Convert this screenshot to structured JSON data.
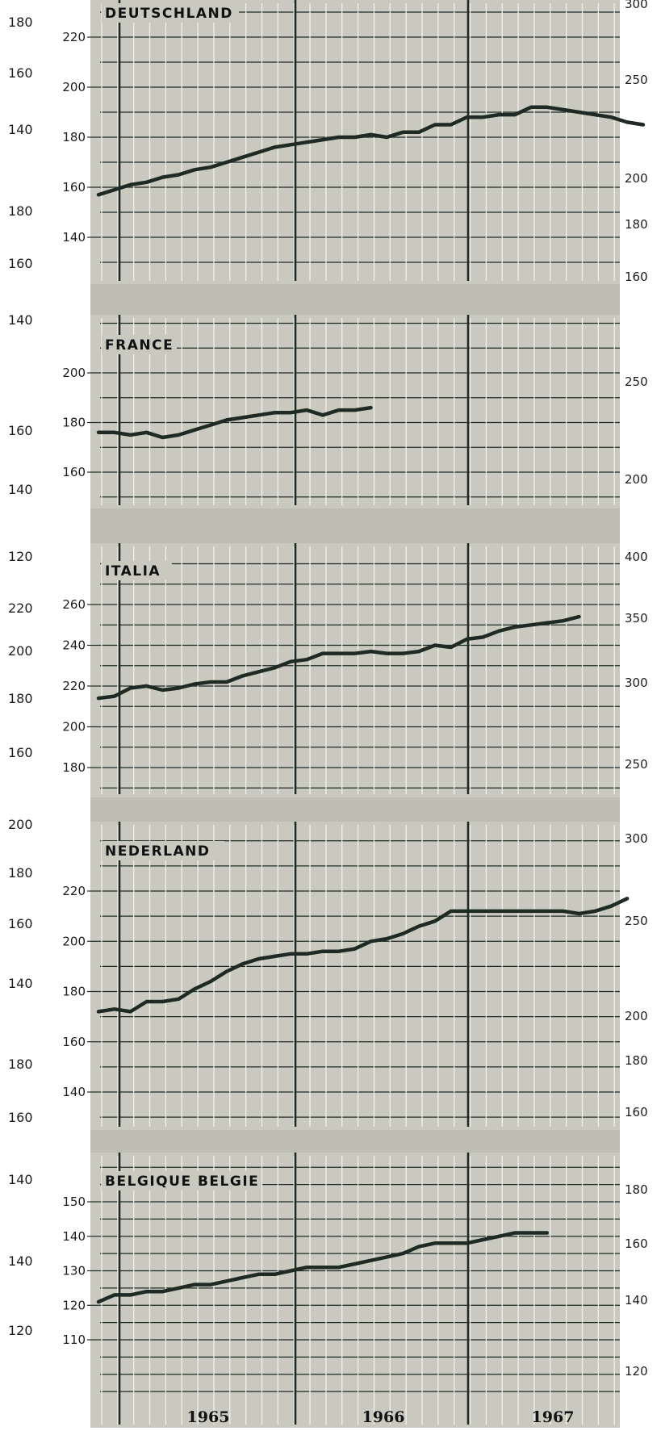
{
  "chart_data": {
    "type": "line",
    "x_labels": [
      "1965",
      "1966",
      "1967"
    ],
    "grid": true,
    "outer_left_ticks": [
      "180",
      "160",
      "140",
      "180",
      "160",
      "140",
      "160",
      "140",
      "120",
      "220",
      "200",
      "180",
      "160",
      "200",
      "180",
      "160",
      "140",
      "180",
      "160",
      "140",
      "140",
      "120"
    ],
    "panels": [
      {
        "title": "DEUTSCHLAND",
        "left_ticks": [
          140,
          160,
          180,
          200,
          220
        ],
        "right_ticks": [
          160,
          180,
          200,
          250,
          300
        ],
        "series": [
          {
            "x": 0,
            "y": 157
          },
          {
            "x": 0.5,
            "y": 159
          },
          {
            "x": 1,
            "y": 161
          },
          {
            "x": 1.5,
            "y": 162
          },
          {
            "x": 2,
            "y": 164
          },
          {
            "x": 2.5,
            "y": 165
          },
          {
            "x": 3,
            "y": 167
          },
          {
            "x": 3.5,
            "y": 168
          },
          {
            "x": 4,
            "y": 170
          },
          {
            "x": 4.5,
            "y": 172
          },
          {
            "x": 5,
            "y": 174
          },
          {
            "x": 5.5,
            "y": 176
          },
          {
            "x": 6,
            "y": 177
          },
          {
            "x": 6.5,
            "y": 178
          },
          {
            "x": 7,
            "y": 179
          },
          {
            "x": 7.5,
            "y": 180
          },
          {
            "x": 8,
            "y": 180
          },
          {
            "x": 8.5,
            "y": 181
          },
          {
            "x": 9,
            "y": 180
          },
          {
            "x": 9.5,
            "y": 182
          },
          {
            "x": 10,
            "y": 182
          },
          {
            "x": 10.5,
            "y": 185
          },
          {
            "x": 11,
            "y": 185
          },
          {
            "x": 11.5,
            "y": 188
          },
          {
            "x": 12,
            "y": 188
          },
          {
            "x": 12.5,
            "y": 189
          },
          {
            "x": 13,
            "y": 189
          },
          {
            "x": 13.5,
            "y": 192
          },
          {
            "x": 14,
            "y": 192
          },
          {
            "x": 14.5,
            "y": 191
          },
          {
            "x": 15,
            "y": 190
          },
          {
            "x": 15.5,
            "y": 189
          },
          {
            "x": 16,
            "y": 188
          },
          {
            "x": 16.5,
            "y": 186
          },
          {
            "x": 17,
            "y": 185
          }
        ]
      },
      {
        "title": "FRANCE",
        "left_ticks": [
          160,
          180,
          200
        ],
        "right_ticks": [
          200,
          250
        ],
        "series": [
          {
            "x": 0,
            "y": 176
          },
          {
            "x": 0.5,
            "y": 176
          },
          {
            "x": 1,
            "y": 175
          },
          {
            "x": 1.5,
            "y": 176
          },
          {
            "x": 2,
            "y": 174
          },
          {
            "x": 2.5,
            "y": 175
          },
          {
            "x": 3,
            "y": 177
          },
          {
            "x": 3.5,
            "y": 179
          },
          {
            "x": 4,
            "y": 181
          },
          {
            "x": 4.5,
            "y": 182
          },
          {
            "x": 5,
            "y": 183
          },
          {
            "x": 5.5,
            "y": 184
          },
          {
            "x": 6,
            "y": 184
          },
          {
            "x": 6.5,
            "y": 185
          },
          {
            "x": 7,
            "y": 183
          },
          {
            "x": 7.5,
            "y": 185
          },
          {
            "x": 8,
            "y": 185
          },
          {
            "x": 8.5,
            "y": 186
          }
        ]
      },
      {
        "title": "ITALIA",
        "left_ticks": [
          180,
          200,
          220,
          240,
          260
        ],
        "right_ticks": [
          250,
          300,
          350,
          400
        ],
        "series": [
          {
            "x": 0,
            "y": 214
          },
          {
            "x": 0.5,
            "y": 215
          },
          {
            "x": 1,
            "y": 219
          },
          {
            "x": 1.5,
            "y": 220
          },
          {
            "x": 2,
            "y": 218
          },
          {
            "x": 2.5,
            "y": 219
          },
          {
            "x": 3,
            "y": 221
          },
          {
            "x": 3.5,
            "y": 222
          },
          {
            "x": 4,
            "y": 222
          },
          {
            "x": 4.5,
            "y": 225
          },
          {
            "x": 5,
            "y": 227
          },
          {
            "x": 5.5,
            "y": 229
          },
          {
            "x": 6,
            "y": 232
          },
          {
            "x": 6.5,
            "y": 233
          },
          {
            "x": 7,
            "y": 236
          },
          {
            "x": 7.5,
            "y": 236
          },
          {
            "x": 8,
            "y": 236
          },
          {
            "x": 8.5,
            "y": 237
          },
          {
            "x": 9,
            "y": 236
          },
          {
            "x": 9.5,
            "y": 236
          },
          {
            "x": 10,
            "y": 237
          },
          {
            "x": 10.5,
            "y": 240
          },
          {
            "x": 11,
            "y": 239
          },
          {
            "x": 11.5,
            "y": 243
          },
          {
            "x": 12,
            "y": 244
          },
          {
            "x": 12.5,
            "y": 247
          },
          {
            "x": 13,
            "y": 249
          },
          {
            "x": 13.5,
            "y": 250
          },
          {
            "x": 14,
            "y": 251
          },
          {
            "x": 14.5,
            "y": 252
          },
          {
            "x": 15,
            "y": 254
          }
        ]
      },
      {
        "title": "NEDERLAND",
        "left_ticks": [
          140,
          160,
          180,
          200,
          220
        ],
        "right_ticks": [
          160,
          180,
          200,
          250,
          300
        ],
        "series": [
          {
            "x": 0,
            "y": 172
          },
          {
            "x": 0.5,
            "y": 173
          },
          {
            "x": 1,
            "y": 172
          },
          {
            "x": 1.5,
            "y": 176
          },
          {
            "x": 2,
            "y": 176
          },
          {
            "x": 2.5,
            "y": 177
          },
          {
            "x": 3,
            "y": 181
          },
          {
            "x": 3.5,
            "y": 184
          },
          {
            "x": 4,
            "y": 188
          },
          {
            "x": 4.5,
            "y": 191
          },
          {
            "x": 5,
            "y": 193
          },
          {
            "x": 5.5,
            "y": 194
          },
          {
            "x": 6,
            "y": 195
          },
          {
            "x": 6.5,
            "y": 195
          },
          {
            "x": 7,
            "y": 196
          },
          {
            "x": 7.5,
            "y": 196
          },
          {
            "x": 8,
            "y": 197
          },
          {
            "x": 8.5,
            "y": 200
          },
          {
            "x": 9,
            "y": 201
          },
          {
            "x": 9.5,
            "y": 203
          },
          {
            "x": 10,
            "y": 206
          },
          {
            "x": 10.5,
            "y": 208
          },
          {
            "x": 11,
            "y": 212
          },
          {
            "x": 11.5,
            "y": 212
          },
          {
            "x": 12,
            "y": 212
          },
          {
            "x": 12.5,
            "y": 212
          },
          {
            "x": 13,
            "y": 212
          },
          {
            "x": 13.5,
            "y": 212
          },
          {
            "x": 14,
            "y": 212
          },
          {
            "x": 14.5,
            "y": 212
          },
          {
            "x": 15,
            "y": 211
          },
          {
            "x": 15.5,
            "y": 212
          },
          {
            "x": 16,
            "y": 214
          },
          {
            "x": 16.5,
            "y": 217
          }
        ]
      },
      {
        "title": "BELGIQUE BELGIE",
        "left_ticks": [
          110,
          120,
          130,
          140,
          150
        ],
        "right_ticks": [
          120,
          140,
          160,
          180
        ],
        "series": [
          {
            "x": 0,
            "y": 121
          },
          {
            "x": 0.5,
            "y": 123
          },
          {
            "x": 1,
            "y": 123
          },
          {
            "x": 1.5,
            "y": 124
          },
          {
            "x": 2,
            "y": 124
          },
          {
            "x": 2.5,
            "y": 125
          },
          {
            "x": 3,
            "y": 126
          },
          {
            "x": 3.5,
            "y": 126
          },
          {
            "x": 4,
            "y": 127
          },
          {
            "x": 4.5,
            "y": 128
          },
          {
            "x": 5,
            "y": 129
          },
          {
            "x": 5.5,
            "y": 129
          },
          {
            "x": 6,
            "y": 130
          },
          {
            "x": 6.5,
            "y": 131
          },
          {
            "x": 7,
            "y": 131
          },
          {
            "x": 7.5,
            "y": 131
          },
          {
            "x": 8,
            "y": 132
          },
          {
            "x": 8.5,
            "y": 133
          },
          {
            "x": 9,
            "y": 134
          },
          {
            "x": 9.5,
            "y": 135
          },
          {
            "x": 10,
            "y": 137
          },
          {
            "x": 10.5,
            "y": 138
          },
          {
            "x": 11,
            "y": 138
          },
          {
            "x": 11.5,
            "y": 138
          },
          {
            "x": 12,
            "y": 139
          },
          {
            "x": 12.5,
            "y": 140
          },
          {
            "x": 13,
            "y": 141
          },
          {
            "x": 13.5,
            "y": 141
          },
          {
            "x": 14,
            "y": 141
          }
        ]
      }
    ]
  },
  "colors": {
    "panel_bg": "#c9c9bf",
    "band_bg": "#bdbdb2",
    "grid_line": "#f2f2ec",
    "ink": "#1f2a24"
  }
}
